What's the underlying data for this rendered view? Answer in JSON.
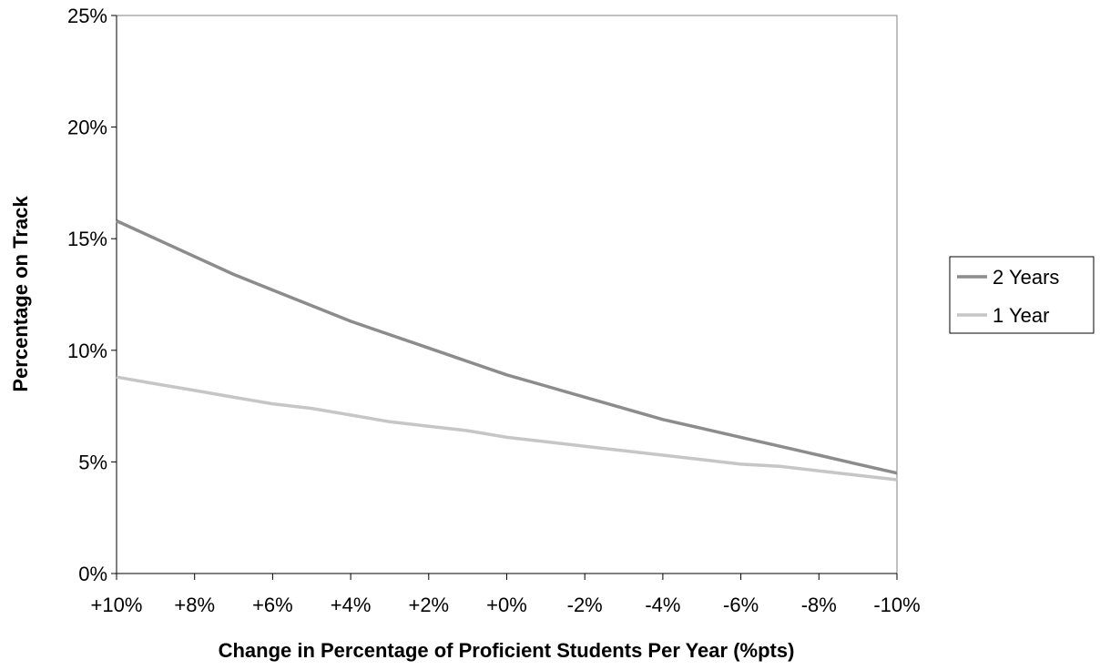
{
  "chart_data": {
    "type": "line",
    "title": "",
    "xlabel": "Change in Percentage of Proficient Students Per Year (%pts)",
    "ylabel": "Percentage on Track",
    "x_tick_labels": [
      "+10%",
      "+8%",
      "+6%",
      "+4%",
      "+2%",
      "+0%",
      "-2%",
      "-4%",
      "-6%",
      "-8%",
      "-10%"
    ],
    "x": [
      10,
      9,
      8,
      7,
      6,
      5,
      4,
      3,
      2,
      1,
      0,
      -1,
      -2,
      -3,
      -4,
      -5,
      -6,
      -7,
      -8,
      -9,
      -10
    ],
    "xlim": [
      10,
      -10
    ],
    "y_tick_labels": [
      "0%",
      "5%",
      "10%",
      "15%",
      "20%",
      "25%"
    ],
    "y_ticks": [
      0,
      5,
      10,
      15,
      20,
      25
    ],
    "ylim": [
      0,
      25
    ],
    "y_unit": "%",
    "grid": false,
    "legend_position": "right",
    "series": [
      {
        "name": "2 Years",
        "color": "#8c8c8c",
        "values": [
          15.8,
          15.0,
          14.2,
          13.4,
          12.7,
          12.0,
          11.3,
          10.7,
          10.1,
          9.5,
          8.9,
          8.4,
          7.9,
          7.4,
          6.9,
          6.5,
          6.1,
          5.7,
          5.3,
          4.9,
          4.5
        ]
      },
      {
        "name": "1 Year",
        "color": "#c6c6c6",
        "values": [
          8.8,
          8.5,
          8.2,
          7.9,
          7.6,
          7.4,
          7.1,
          6.8,
          6.6,
          6.4,
          6.1,
          5.9,
          5.7,
          5.5,
          5.3,
          5.1,
          4.9,
          4.8,
          4.6,
          4.4,
          4.2
        ]
      }
    ]
  }
}
